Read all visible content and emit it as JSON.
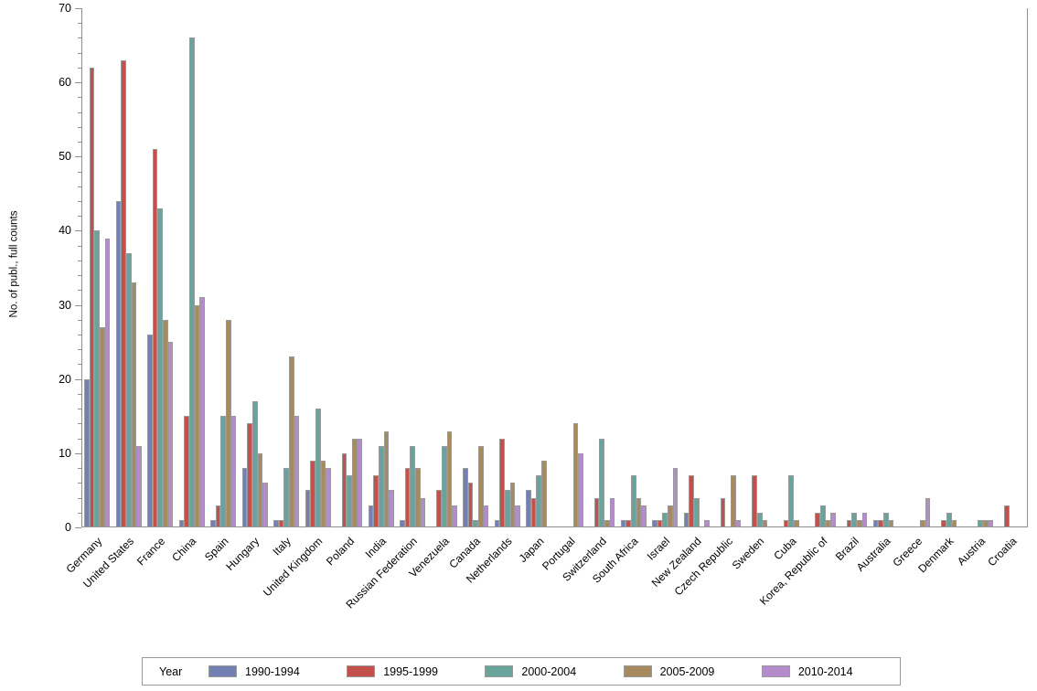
{
  "chart_data": {
    "type": "bar",
    "title": "",
    "xlabel": "",
    "ylabel": "No. of publ., full counts",
    "ylim": [
      0,
      70
    ],
    "y_major_ticks": [
      0,
      10,
      20,
      30,
      40,
      50,
      60,
      70
    ],
    "y_minor_tick_interval": 2,
    "grid": false,
    "legend_title": "Year",
    "legend_position": "bottom",
    "categories": [
      "Germany",
      "United States",
      "France",
      "China",
      "Spain",
      "Hungary",
      "Italy",
      "United Kingdom",
      "Poland",
      "India",
      "Russian Federation",
      "Venezuela",
      "Canada",
      "Netherlands",
      "Japan",
      "Portugal",
      "Switzerland",
      "South Africa",
      "Israel",
      "New Zealand",
      "Czech Republic",
      "Sweden",
      "Cuba",
      "Korea, Republic of",
      "Brazil",
      "Australia",
      "Greece",
      "Denmark",
      "Austria",
      "Croatia"
    ],
    "series": [
      {
        "name": "1990-1994",
        "color": "#7380b4",
        "values": [
          20,
          44,
          26,
          1,
          1,
          8,
          1,
          5,
          0,
          3,
          1,
          0,
          8,
          1,
          5,
          0,
          0,
          1,
          1,
          2,
          0,
          0,
          0,
          0,
          0,
          1,
          0,
          0,
          0,
          0
        ]
      },
      {
        "name": "1995-1999",
        "color": "#c4504c",
        "values": [
          62,
          63,
          51,
          15,
          3,
          14,
          1,
          9,
          10,
          7,
          8,
          5,
          6,
          12,
          4,
          0,
          4,
          1,
          1,
          7,
          4,
          7,
          1,
          2,
          1,
          1,
          0,
          1,
          0,
          3
        ]
      },
      {
        "name": "2000-2004",
        "color": "#68a39c",
        "values": [
          40,
          37,
          43,
          66,
          15,
          17,
          8,
          16,
          7,
          11,
          11,
          11,
          1,
          5,
          7,
          0,
          12,
          7,
          2,
          4,
          0,
          2,
          7,
          3,
          2,
          2,
          0,
          2,
          1,
          0
        ]
      },
      {
        "name": "2005-2009",
        "color": "#a78b5f",
        "values": [
          27,
          33,
          28,
          30,
          28,
          10,
          23,
          9,
          12,
          13,
          8,
          13,
          11,
          6,
          9,
          14,
          1,
          4,
          3,
          0,
          7,
          1,
          1,
          1,
          1,
          1,
          1,
          1,
          1,
          0
        ]
      },
      {
        "name": "2010-2014",
        "color": "#b58ccb",
        "values": [
          39,
          11,
          25,
          31,
          15,
          6,
          15,
          8,
          12,
          5,
          4,
          3,
          3,
          3,
          0,
          10,
          4,
          3,
          8,
          1,
          1,
          0,
          0,
          2,
          2,
          0,
          4,
          0,
          1,
          0
        ]
      }
    ]
  },
  "layout_colors": {
    "axis_line": "#8f8f8f",
    "bar_border": "#9a9a9a",
    "text": "#000000"
  }
}
